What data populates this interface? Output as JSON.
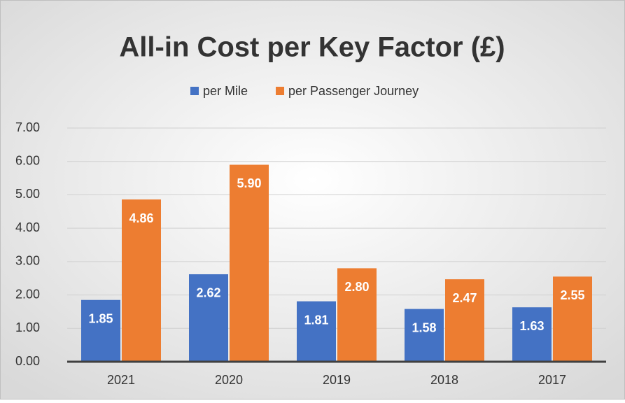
{
  "chart_data": {
    "type": "bar",
    "title": "All-in Cost per Key Factor (£)",
    "categories": [
      "2021",
      "2020",
      "2019",
      "2018",
      "2017"
    ],
    "series": [
      {
        "name": "per Mile",
        "color": "#4472c4",
        "values": [
          1.85,
          2.62,
          1.81,
          1.58,
          1.63
        ],
        "value_labels": [
          "1.85",
          "2.62",
          "1.81",
          "1.58",
          "1.63"
        ]
      },
      {
        "name": "per Passenger Journey",
        "color": "#ed7d31",
        "values": [
          4.86,
          5.9,
          2.8,
          2.47,
          2.55
        ],
        "value_labels": [
          "4.86",
          "5.90",
          "2.80",
          "2.47",
          "2.55"
        ]
      }
    ],
    "ylim": [
      0,
      7
    ],
    "yticks": [
      {
        "value": 0,
        "label": "0.00"
      },
      {
        "value": 1,
        "label": "1.00"
      },
      {
        "value": 2,
        "label": "2.00"
      },
      {
        "value": 3,
        "label": "3.00"
      },
      {
        "value": 4,
        "label": "4.00"
      },
      {
        "value": 5,
        "label": "5.00"
      },
      {
        "value": 6,
        "label": "6.00"
      },
      {
        "value": 7,
        "label": "7.00"
      }
    ],
    "grid": true,
    "legend": "top"
  }
}
